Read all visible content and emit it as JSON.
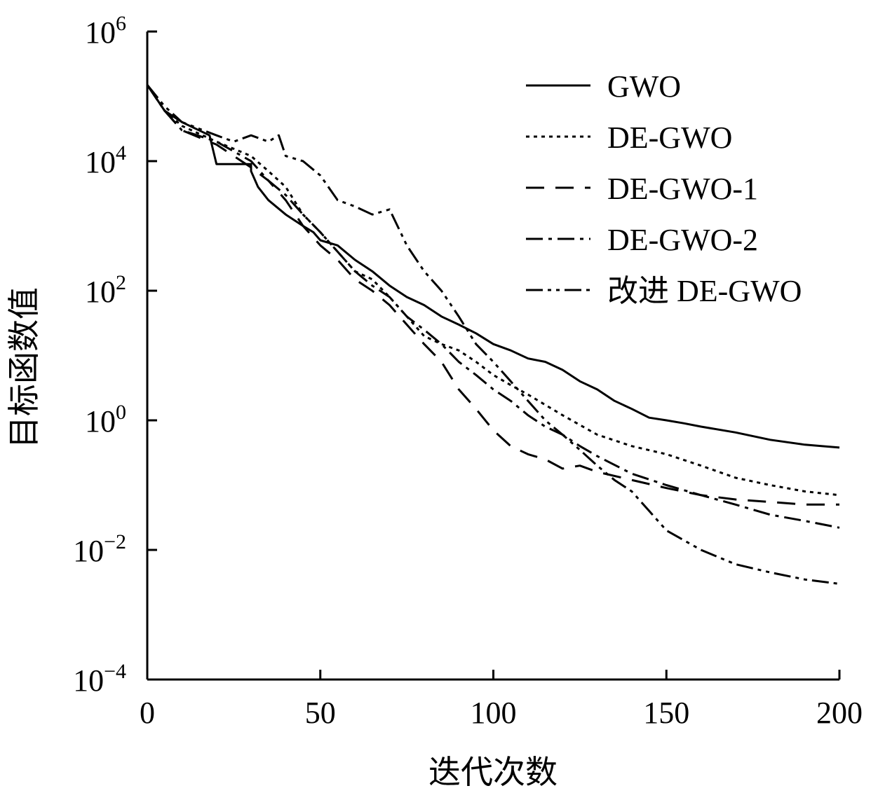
{
  "chart_data": {
    "type": "line",
    "xlabel": "迭代次数",
    "ylabel": "目标函数值",
    "xlim": [
      0,
      200
    ],
    "ylim": [
      0.0001,
      1000000
    ],
    "yscale": "log",
    "x_ticks": [
      "0",
      "50",
      "100",
      "150",
      "200"
    ],
    "y_ticks": [
      {
        "base": "10",
        "exp": "6"
      },
      {
        "base": "10",
        "exp": "4"
      },
      {
        "base": "10",
        "exp": "2"
      },
      {
        "base": "10",
        "exp": "0"
      },
      {
        "base": "10",
        "exp": "−2"
      },
      {
        "base": "10",
        "exp": "−4"
      }
    ],
    "legend_position": "top-right",
    "series": [
      {
        "name": "GWO",
        "style": "solid",
        "x": [
          0,
          5,
          10,
          18,
          20,
          25,
          30,
          30,
          32,
          35,
          40,
          45,
          48,
          50,
          55,
          60,
          65,
          70,
          75,
          80,
          85,
          90,
          95,
          100,
          105,
          110,
          115,
          120,
          125,
          130,
          135,
          140,
          145,
          150,
          155,
          160,
          170,
          180,
          190,
          200
        ],
        "y": [
          150000,
          60000,
          40000,
          25000,
          9000,
          9000,
          9000,
          7000,
          4000,
          2500,
          1500,
          1000,
          800,
          600,
          500,
          300,
          200,
          120,
          80,
          60,
          40,
          30,
          22,
          15,
          12,
          9,
          8,
          6,
          4,
          3,
          2,
          1.5,
          1.1,
          1,
          0.9,
          0.8,
          0.65,
          0.5,
          0.42,
          0.38
        ]
      },
      {
        "name": "DE-GWO",
        "style": "dotted",
        "x": [
          0,
          5,
          10,
          20,
          30,
          35,
          40,
          45,
          50,
          55,
          60,
          65,
          70,
          75,
          80,
          85,
          90,
          95,
          100,
          105,
          110,
          120,
          130,
          140,
          150,
          160,
          170,
          180,
          190,
          200
        ],
        "y": [
          150000,
          60000,
          35000,
          20000,
          12000,
          7000,
          4000,
          1500,
          800,
          400,
          200,
          150,
          80,
          40,
          20,
          15,
          12,
          8,
          5,
          3.5,
          2.5,
          1.2,
          0.6,
          0.4,
          0.3,
          0.2,
          0.13,
          0.1,
          0.08,
          0.07
        ]
      },
      {
        "name": "DE-GWO-1",
        "style": "dashed",
        "x": [
          0,
          5,
          10,
          20,
          30,
          35,
          40,
          45,
          50,
          55,
          60,
          65,
          70,
          75,
          80,
          85,
          90,
          95,
          100,
          105,
          110,
          115,
          120,
          125,
          130,
          140,
          150,
          160,
          170,
          180,
          190,
          200
        ],
        "y": [
          150000,
          60000,
          30000,
          18000,
          8000,
          5000,
          2500,
          1000,
          500,
          300,
          150,
          100,
          60,
          30,
          15,
          8,
          3,
          1.5,
          0.7,
          0.4,
          0.3,
          0.25,
          0.18,
          0.2,
          0.16,
          0.12,
          0.09,
          0.07,
          0.06,
          0.055,
          0.05,
          0.05
        ]
      },
      {
        "name": "DE-GWO-2",
        "style": "dashdot",
        "x": [
          0,
          5,
          10,
          20,
          30,
          35,
          40,
          45,
          50,
          55,
          60,
          65,
          70,
          75,
          80,
          85,
          90,
          95,
          100,
          105,
          110,
          115,
          120,
          125,
          130,
          140,
          150,
          160,
          170,
          180,
          190,
          200
        ],
        "y": [
          150000,
          60000,
          30000,
          20000,
          10000,
          5000,
          3000,
          1500,
          800,
          400,
          200,
          120,
          80,
          40,
          25,
          15,
          8,
          5,
          3,
          2,
          1.2,
          0.8,
          0.6,
          0.4,
          0.28,
          0.15,
          0.1,
          0.07,
          0.05,
          0.035,
          0.028,
          0.022
        ]
      },
      {
        "name": "改进 DE-GWO",
        "style": "dashdotdot",
        "x": [
          0,
          5,
          10,
          20,
          25,
          30,
          35,
          38,
          40,
          45,
          50,
          55,
          60,
          65,
          70,
          75,
          80,
          85,
          90,
          95,
          100,
          105,
          110,
          115,
          120,
          125,
          130,
          135,
          140,
          145,
          150,
          160,
          170,
          180,
          190,
          200
        ],
        "y": [
          150000,
          70000,
          40000,
          25000,
          20000,
          25000,
          20000,
          25000,
          12000,
          10000,
          6000,
          2500,
          2000,
          1500,
          1800,
          500,
          200,
          100,
          40,
          15,
          8,
          4,
          2,
          1,
          0.6,
          0.35,
          0.2,
          0.12,
          0.08,
          0.04,
          0.02,
          0.01,
          0.006,
          0.0045,
          0.0035,
          0.003
        ]
      }
    ]
  },
  "legend": [
    {
      "label": "GWO"
    },
    {
      "label": "DE-GWO"
    },
    {
      "label": "DE-GWO-1"
    },
    {
      "label": "DE-GWO-2"
    },
    {
      "label": "改进 DE-GWO"
    }
  ]
}
